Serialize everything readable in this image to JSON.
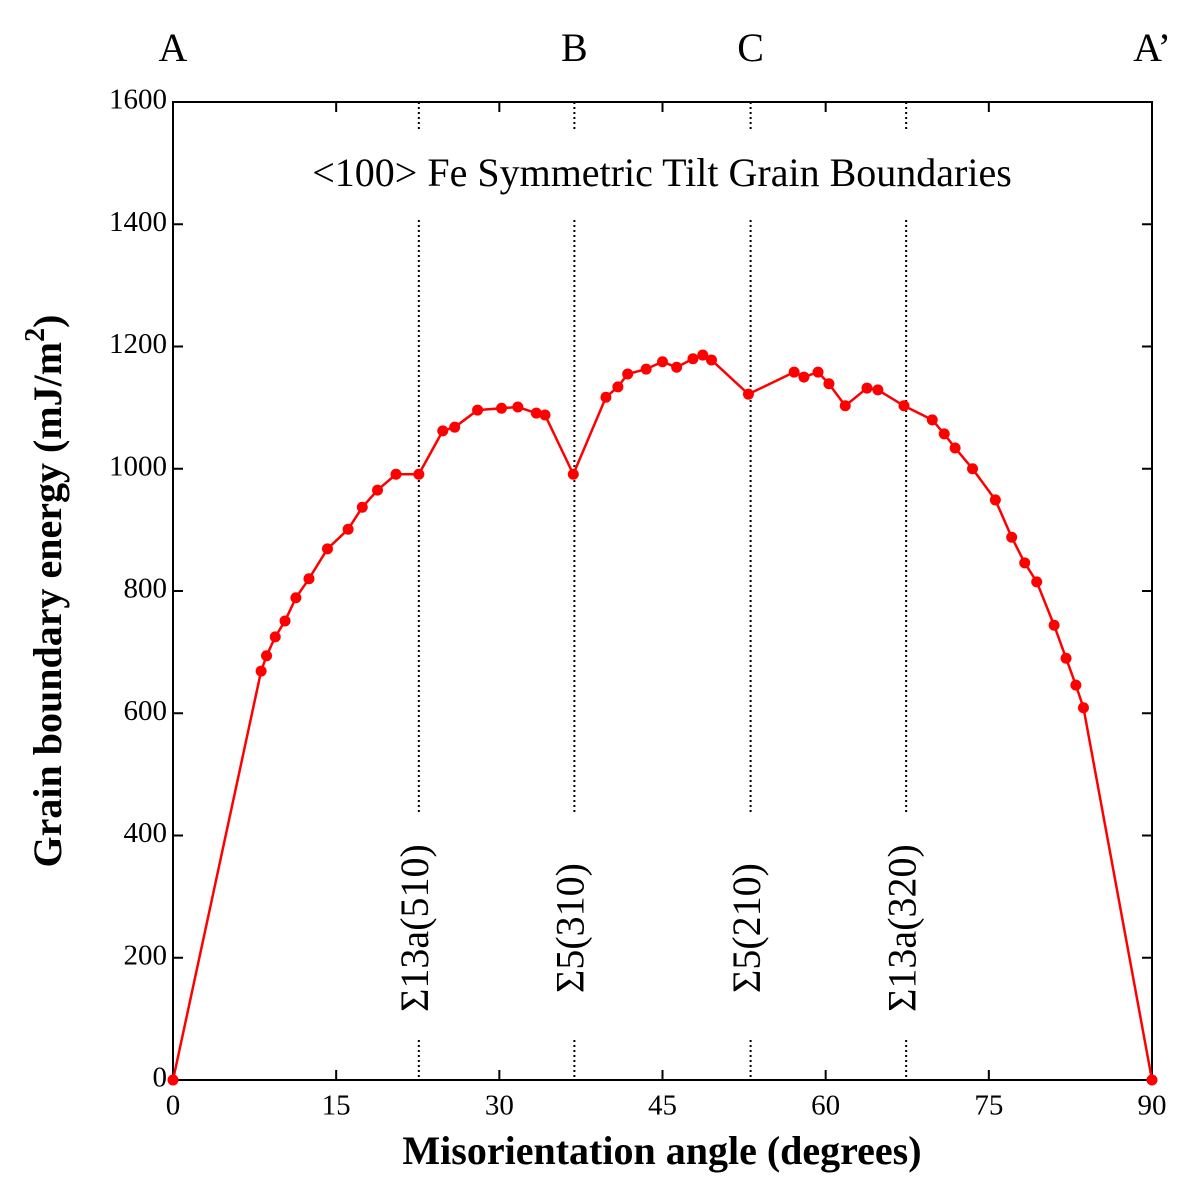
{
  "chart_data": {
    "type": "line",
    "title": "<100> Fe Symmetric Tilt Grain Boundaries",
    "x_label": "Misorientation angle (degrees)",
    "y_label": "Grain boundary energy (mJ/m",
    "y_label_sup": "2",
    "y_label_end": ")",
    "xlim": [
      0,
      90
    ],
    "ylim": [
      0,
      1600
    ],
    "xticks": [
      0,
      15,
      30,
      45,
      60,
      75,
      90
    ],
    "yticks": [
      0,
      200,
      400,
      600,
      800,
      1000,
      1200,
      1400,
      1600
    ],
    "color": "#ff0000",
    "x": [
      0,
      8.1,
      8.6,
      9.4,
      10.3,
      11.3,
      12.5,
      14.2,
      16.1,
      17.4,
      18.8,
      20.5,
      22.6,
      24.8,
      25.9,
      28.0,
      30.2,
      31.7,
      33.4,
      34.2,
      36.8,
      39.8,
      40.9,
      41.8,
      43.5,
      45.0,
      46.3,
      47.8,
      48.7,
      49.5,
      52.9,
      57.1,
      58.0,
      59.3,
      60.3,
      61.8,
      63.8,
      64.8,
      67.2,
      69.8,
      70.9,
      71.9,
      73.5,
      75.6,
      77.1,
      78.3,
      79.4,
      81.0,
      82.1,
      83.0,
      83.7,
      90
    ],
    "values": [
      0,
      669,
      694,
      725,
      751,
      789,
      820,
      869,
      901,
      937,
      965,
      991,
      991,
      1062,
      1068,
      1096,
      1099,
      1101,
      1091,
      1088,
      991,
      1117,
      1134,
      1155,
      1163,
      1175,
      1166,
      1180,
      1186,
      1178,
      1122,
      1158,
      1150,
      1158,
      1139,
      1103,
      1132,
      1129,
      1103,
      1080,
      1057,
      1034,
      1000,
      949,
      888,
      846,
      815,
      744,
      690,
      646,
      609,
      0
    ],
    "boundaries": [
      {
        "label": "Σ13a(510)",
        "x": 22.6
      },
      {
        "label": "Σ5(310)",
        "x": 36.9
      },
      {
        "label": "Σ5(210)",
        "x": 53.1
      },
      {
        "label": "Σ13a(320)",
        "x": 67.4
      }
    ],
    "top_labels": [
      {
        "label": "A",
        "x": 0
      },
      {
        "label": "B",
        "x": 36.9
      },
      {
        "label": "C",
        "x": 53.1
      },
      {
        "label": "A’",
        "x": 90
      }
    ]
  }
}
